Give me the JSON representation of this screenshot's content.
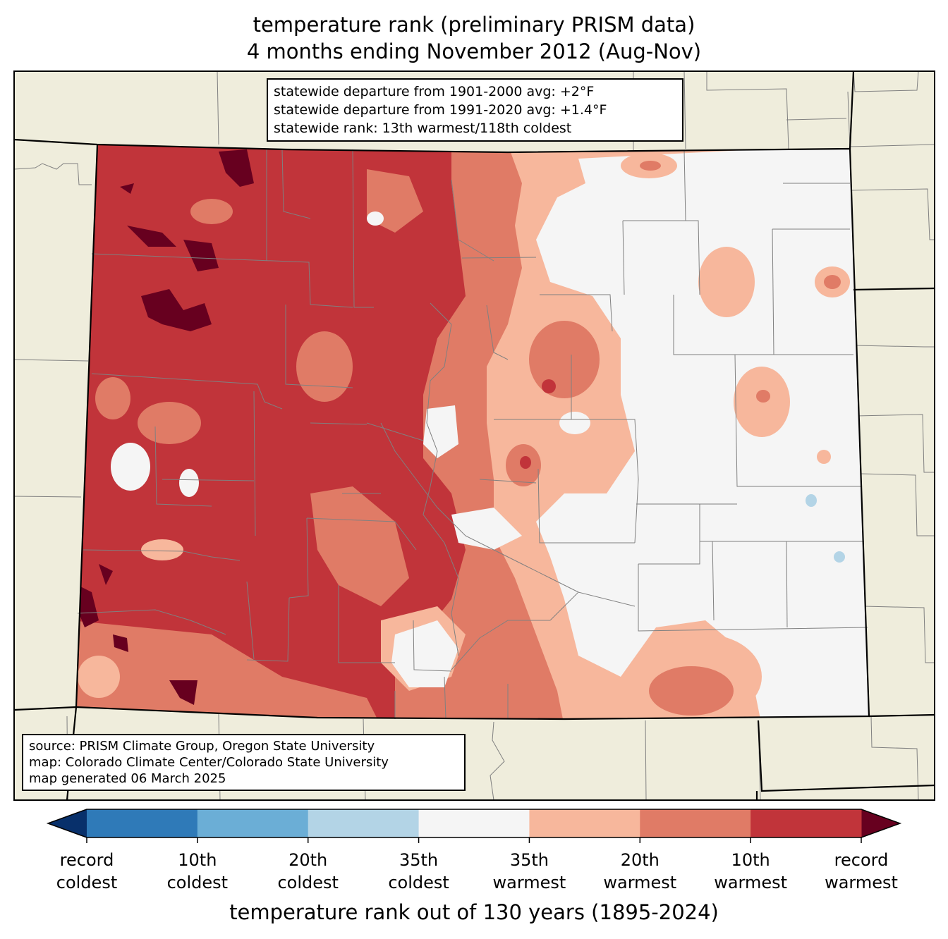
{
  "title": {
    "line1": "temperature rank (preliminary PRISM data)",
    "line2": "4 months ending November 2012 (Aug-Nov)"
  },
  "stats_box": {
    "line1": "statewide departure from 1901-2000 avg: +2°F",
    "line2": "statewide departure from 1991-2020 avg: +1.4°F",
    "line3": "statewide rank: 13th warmest/118th coldest"
  },
  "source_box": {
    "line1": "source: PRISM Climate Group, Oregon State University",
    "line2": "map: Colorado Climate Center/Colorado State University",
    "line3": "map generated 06 March 2025"
  },
  "colorbar": {
    "bins": [
      {
        "color": "#2f7ab8"
      },
      {
        "color": "#6baed6"
      },
      {
        "color": "#b3d4e6"
      },
      {
        "color": "#f5f5f5"
      },
      {
        "color": "#f7b79c"
      },
      {
        "color": "#e07b66"
      },
      {
        "color": "#c1343a"
      }
    ],
    "extend_low_color": "#08306b",
    "extend_high_color": "#67001f",
    "tick_labels": [
      {
        "line1": "record",
        "line2": "coldest"
      },
      {
        "line1": "10th",
        "line2": "coldest"
      },
      {
        "line1": "20th",
        "line2": "coldest"
      },
      {
        "line1": "35th",
        "line2": "coldest"
      },
      {
        "line1": "35th",
        "line2": "warmest"
      },
      {
        "line1": "20th",
        "line2": "warmest"
      },
      {
        "line1": "10th",
        "line2": "warmest"
      },
      {
        "line1": "record",
        "line2": "warmest"
      }
    ],
    "label": "temperature rank out of 130 years (1895-2024)"
  },
  "colors": {
    "background_land": "#efeddc",
    "record_warmest": "#67001f",
    "warm_10th": "#c1343a",
    "warm_20th": "#e07b66",
    "warm_35th": "#f7b79c",
    "near_normal": "#f5f5f5",
    "cold_20th": "#b3d4e6",
    "county_lines": "#808080",
    "state_lines": "#000000"
  }
}
